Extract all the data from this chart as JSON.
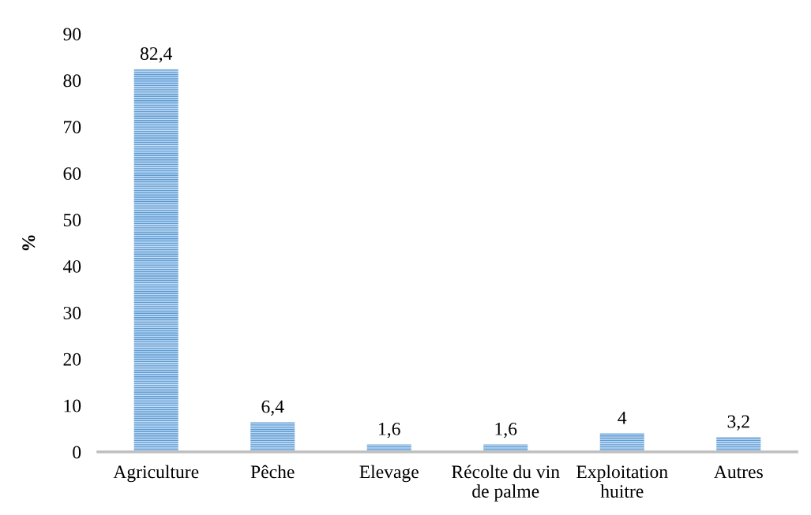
{
  "chart_data": {
    "type": "bar",
    "ylabel": "%",
    "categories": [
      "Agriculture",
      "Pêche",
      "Elevage",
      "Récolte du vin\nde palme",
      "Exploitation\nhuitre",
      "Autres"
    ],
    "values": [
      82.4,
      6.4,
      1.6,
      1.6,
      4,
      3.2
    ],
    "value_labels": [
      "82,4",
      "6,4",
      "1,6",
      "1,6",
      "4",
      "3,2"
    ],
    "color": "#5b9bd5",
    "ylim": [
      0,
      90
    ],
    "yticks": [
      0,
      10,
      20,
      30,
      40,
      50,
      60,
      70,
      80,
      90
    ]
  }
}
